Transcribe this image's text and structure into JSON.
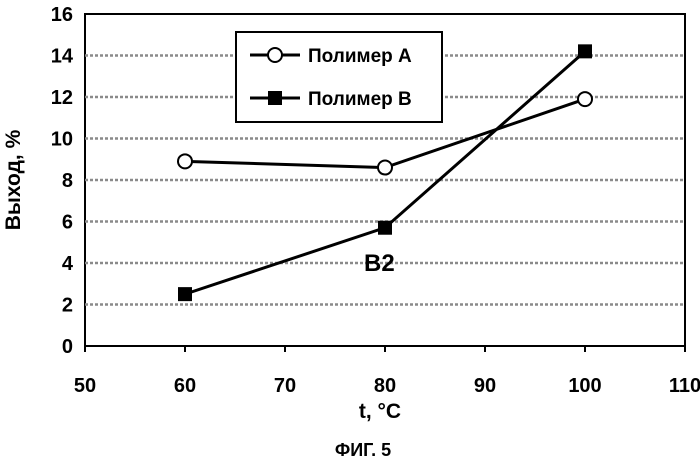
{
  "chart_data": {
    "type": "line",
    "xlabel": "t, °C",
    "ylabel": "Выход, %",
    "xlim": [
      50,
      110
    ],
    "ylim": [
      0,
      16
    ],
    "xticks": [
      50,
      60,
      70,
      80,
      90,
      100,
      110
    ],
    "yticks": [
      0,
      2,
      4,
      6,
      8,
      10,
      12,
      14,
      16
    ],
    "grid": "horizontal dashed",
    "legend_position": "top-left",
    "series": [
      {
        "name": "Полимер A",
        "marker": "open-circle",
        "x": [
          60,
          80,
          100
        ],
        "y": [
          8.9,
          8.6,
          11.9
        ]
      },
      {
        "name": "Полимер B",
        "marker": "filled-square",
        "x": [
          60,
          80,
          100
        ],
        "y": [
          2.5,
          5.7,
          14.2
        ]
      }
    ],
    "annotations": [
      {
        "text": "B2",
        "x": 80,
        "y": 5.7
      }
    ]
  },
  "caption": "ФИГ. 5"
}
